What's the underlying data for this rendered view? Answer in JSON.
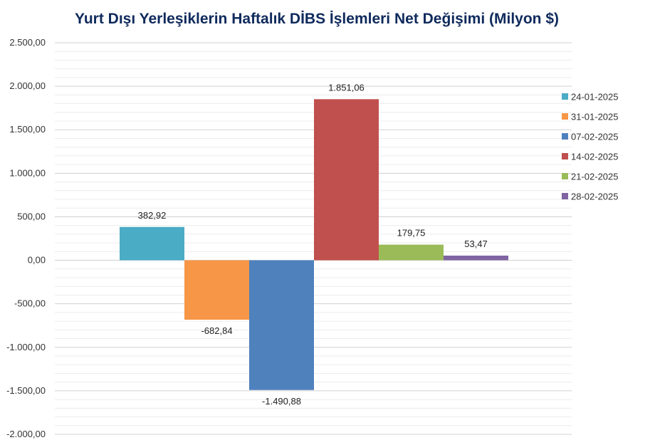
{
  "chart_data": {
    "type": "bar",
    "title": "Yurt Dışı Yerleşiklerin Haftalık DİBS İşlemleri Net Değişimi (Milyon $)",
    "xlabel": "",
    "ylabel": "",
    "ylim": [
      -2000,
      2500
    ],
    "yticks": [
      2500,
      2000,
      1500,
      1000,
      500,
      0,
      -500,
      -1000,
      -1500,
      -2000
    ],
    "ytick_labels": [
      "2.500,00",
      "2.000,00",
      "1.500,00",
      "1.000,00",
      "500,00",
      "0,00",
      "-500,00",
      "-1.000,00",
      "-1.500,00",
      "-2.000,00"
    ],
    "grid": true,
    "legend_position": "right",
    "series": [
      {
        "name": "24-01-2025",
        "value": 382.92,
        "label": "382,92",
        "color": "#4bacc6"
      },
      {
        "name": "31-01-2025",
        "value": -682.84,
        "label": "-682,84",
        "color": "#f79646"
      },
      {
        "name": "07-02-2025",
        "value": -1490.88,
        "label": "-1.490,88",
        "color": "#4f81bd"
      },
      {
        "name": "14-02-2025",
        "value": 1851.06,
        "label": "1.851,06",
        "color": "#c0504d"
      },
      {
        "name": "21-02-2025",
        "value": 179.75,
        "label": "179,75",
        "color": "#9bbb59"
      },
      {
        "name": "28-02-2025",
        "value": 53.47,
        "label": "53,47",
        "color": "#8064a2"
      }
    ]
  }
}
